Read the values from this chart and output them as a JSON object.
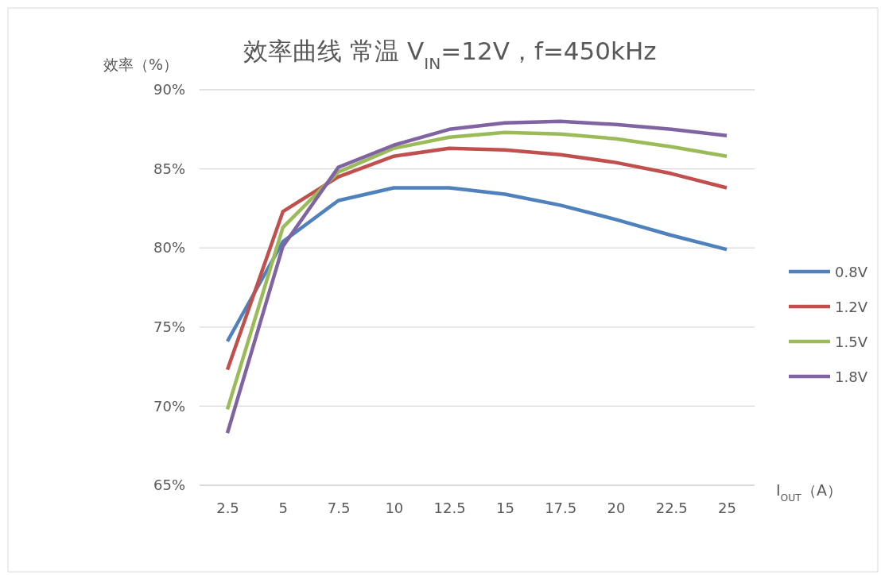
{
  "chart_data": {
    "type": "line",
    "title": "效率曲线  常温 V$_{IN}$=12V，f=450kHz",
    "xlabel": "I$_{OUT}$（A）",
    "ylabel": "效率（%）",
    "categories": [
      "2.5",
      "5",
      "7.5",
      "10",
      "12.5",
      "15",
      "17.5",
      "20",
      "22.5",
      "25"
    ],
    "series": [
      {
        "name": "0.8V",
        "color": "#4f81bd",
        "values": [
          74.1,
          80.4,
          83.0,
          83.8,
          83.8,
          83.4,
          82.7,
          81.8,
          80.8,
          79.9
        ]
      },
      {
        "name": "1.2V",
        "color": "#c0504d",
        "values": [
          72.3,
          82.3,
          84.5,
          85.8,
          86.3,
          86.2,
          85.9,
          85.4,
          84.7,
          83.8
        ]
      },
      {
        "name": "1.5V",
        "color": "#9bbb59",
        "values": [
          69.8,
          81.3,
          84.8,
          86.3,
          87.0,
          87.3,
          87.2,
          86.9,
          86.4,
          85.8
        ]
      },
      {
        "name": "1.8V",
        "color": "#8064a2",
        "values": [
          68.3,
          80.1,
          85.1,
          86.5,
          87.5,
          87.9,
          88.0,
          87.8,
          87.5,
          87.1
        ]
      }
    ],
    "ylim": [
      65,
      90
    ],
    "yticks": [
      {
        "value": 65,
        "label": "65%"
      },
      {
        "value": 70,
        "label": "70%"
      },
      {
        "value": 75,
        "label": "75%"
      },
      {
        "value": 80,
        "label": "80%"
      },
      {
        "value": 85,
        "label": "85%"
      },
      {
        "value": 90,
        "label": "90%"
      }
    ],
    "grid": "y",
    "legend": "right",
    "marker": "none",
    "line_style": "solid"
  }
}
